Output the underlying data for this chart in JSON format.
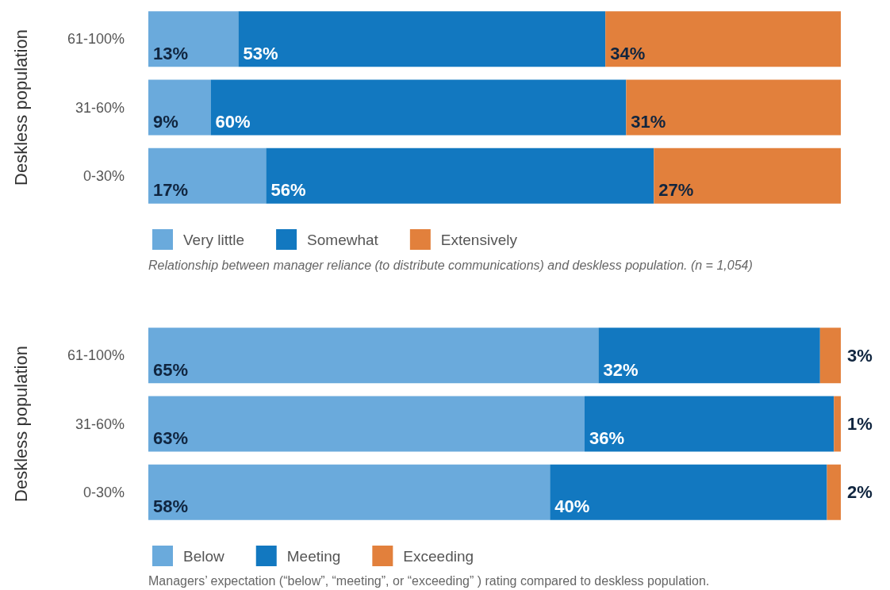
{
  "chart_data": [
    {
      "type": "bar",
      "orientation": "horizontal",
      "stacked": true,
      "ylabel": "Deskless population",
      "categories": [
        "61-100%",
        "31-60%",
        "0-30%"
      ],
      "series": [
        {
          "name": "Very little",
          "color": "#6aaadc",
          "values": [
            13,
            9,
            17
          ],
          "value_labels": [
            "13%",
            "9%",
            "17%"
          ]
        },
        {
          "name": "Somewhat",
          "color": "#1278c0",
          "values": [
            53,
            60,
            56
          ],
          "value_labels": [
            "53%",
            "60%",
            "56%"
          ]
        },
        {
          "name": "Extensively",
          "color": "#e2803c",
          "values": [
            34,
            31,
            27
          ],
          "value_labels": [
            "34%",
            "31%",
            "27%"
          ]
        }
      ],
      "tick_labels": "y",
      "legend": "bottom",
      "annotations": [
        "Relationship between manager reliance (to distribute communications) and deskless population. (n = 1,054)"
      ]
    },
    {
      "type": "bar",
      "orientation": "horizontal",
      "stacked": true,
      "ylabel": "Deskless population",
      "categories": [
        "61-100%",
        "31-60%",
        "0-30%"
      ],
      "series": [
        {
          "name": "Below",
          "color": "#6aaadc",
          "values": [
            65,
            63,
            58
          ],
          "value_labels": [
            "65%",
            "63%",
            "58%"
          ]
        },
        {
          "name": "Meeting",
          "color": "#1278c0",
          "values": [
            32,
            36,
            40
          ],
          "value_labels": [
            "32%",
            "36%",
            "40%"
          ]
        },
        {
          "name": "Exceeding",
          "color": "#e2803c",
          "values": [
            3,
            1,
            2
          ],
          "value_labels": [
            "3%",
            "1%",
            "2%"
          ]
        }
      ],
      "tick_labels": "y",
      "legend": "bottom",
      "annotations": [
        "Managers’ expectation (“below”, “meeting”, or “exceeding” ) rating compared to deskless population."
      ]
    }
  ]
}
